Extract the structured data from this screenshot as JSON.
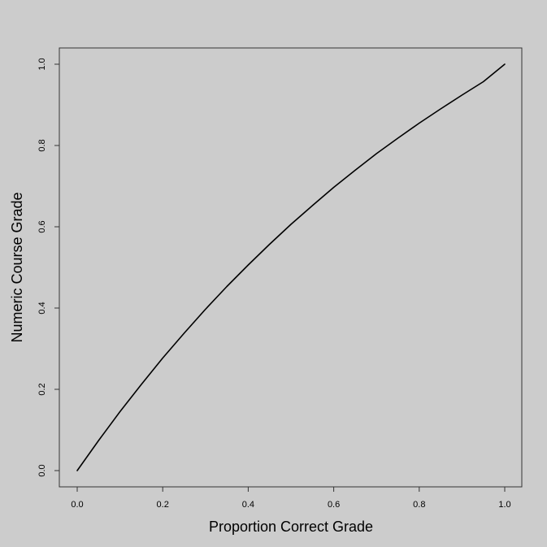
{
  "chart_data": {
    "type": "line",
    "title": "",
    "xlabel": "Proportion Correct Grade",
    "ylabel": "Numeric Course Grade",
    "xlim": [
      0.0,
      1.0
    ],
    "ylim": [
      0.0,
      1.0
    ],
    "x_ticks": [
      "0.0",
      "0.2",
      "0.4",
      "0.6",
      "0.8",
      "1.0"
    ],
    "y_ticks": [
      "0.0",
      "0.2",
      "0.4",
      "0.6",
      "0.8",
      "1.0"
    ],
    "grid": false,
    "legend": "none",
    "background_color": "#cccccc",
    "line_color": "#000000",
    "series": [
      {
        "x": [
          0.0,
          0.05,
          0.1,
          0.15,
          0.2,
          0.25,
          0.3,
          0.35,
          0.4,
          0.45,
          0.5,
          0.55,
          0.6,
          0.65,
          0.7,
          0.75,
          0.8,
          0.85,
          0.9,
          0.95,
          1.0
        ],
        "y": [
          0.0,
          0.074,
          0.145,
          0.212,
          0.277,
          0.338,
          0.397,
          0.453,
          0.506,
          0.557,
          0.606,
          0.652,
          0.697,
          0.739,
          0.78,
          0.818,
          0.855,
          0.89,
          0.924,
          0.957,
          1.0
        ]
      }
    ]
  }
}
